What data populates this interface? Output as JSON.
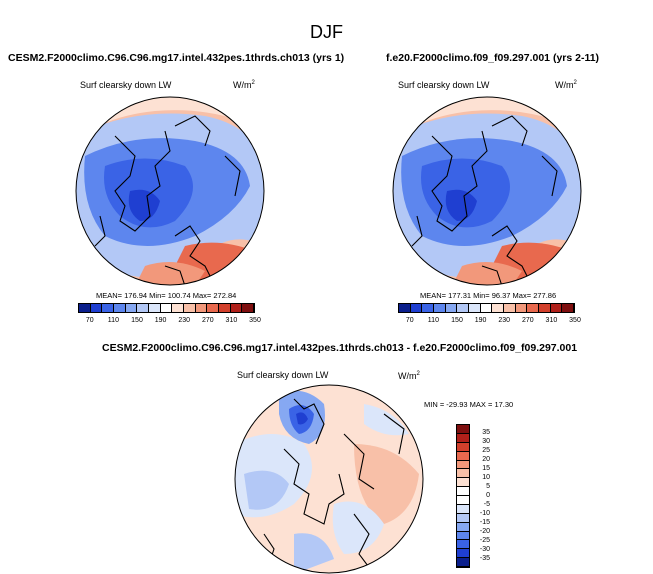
{
  "page_title": "DJF",
  "panels": [
    {
      "case": "CESM2.F2000climo.C96.C96.mg17.intel.432pes.1thrds.ch013 (yrs 1)",
      "variable": "Surf clearsky down LW",
      "units_base": "W/m",
      "units_exp": "2",
      "stats": "MEAN= 176.94   Min= 100.74   Max= 272.84"
    },
    {
      "case": "f.e20.F2000climo.f09_f09.297.001 (yrs 2-11)",
      "variable": "Surf clearsky down LW",
      "units_base": "W/m",
      "units_exp": "2",
      "stats": "MEAN= 177.31   Min=  96.37   Max= 277.86"
    },
    {
      "case": "CESM2.F2000climo.C96.C96.mg17.intel.432pes.1thrds.ch013 - f.e20.F2000climo.f09_f09.297.001",
      "variable": "Surf clearsky down LW",
      "units_base": "W/m",
      "units_exp": "2",
      "stats": "MIN = -29.93  MAX =  17.30"
    }
  ],
  "colorbar_main": {
    "ticks": [
      "70",
      "110",
      "150",
      "190",
      "230",
      "270",
      "310",
      "350"
    ],
    "colors": [
      "#0b1f8c",
      "#1f3fd1",
      "#3a63e6",
      "#5d86ee",
      "#86a8f2",
      "#b3c8f6",
      "#dbe6fa",
      "#ffffff",
      "#fde1d3",
      "#f8c0a8",
      "#f2987b",
      "#e8694e",
      "#d2402c",
      "#b0201a",
      "#7e0f0f"
    ]
  },
  "colorbar_diff": {
    "ticks": [
      "35",
      "30",
      "25",
      "20",
      "15",
      "10",
      "5",
      "0",
      "-5",
      "-10",
      "-15",
      "-20",
      "-25",
      "-30",
      "-35"
    ],
    "colors": [
      "#7e0f0f",
      "#b0201a",
      "#d2402c",
      "#e8694e",
      "#f2987b",
      "#f8c0a8",
      "#fde1d3",
      "#ffffff",
      "#ffffff",
      "#dbe6fa",
      "#b3c8f6",
      "#86a8f2",
      "#5d86ee",
      "#3a63e6",
      "#1f3fd1",
      "#0b1f8c"
    ]
  }
}
